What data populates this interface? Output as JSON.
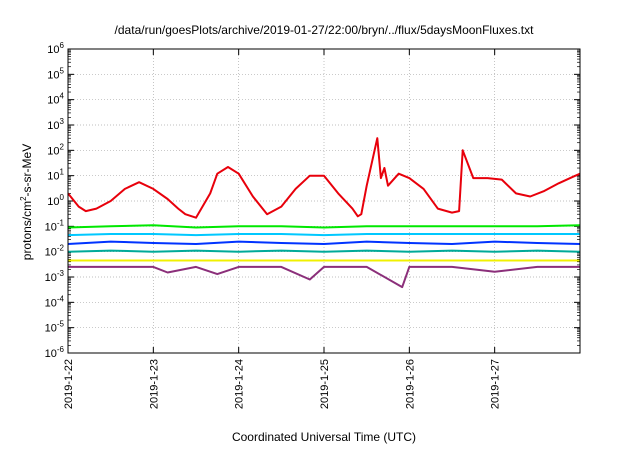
{
  "chart_data": {
    "type": "line",
    "title": "/data/run/goesPlots/archive/2019-01-27/22:00/bryn/../flux/5daysMoonFluxes.txt",
    "xlabel": "Coordinated Universal Time (UTC)",
    "ylabel": {
      "base": "protons/cm",
      "sup": "2",
      "rest": "-s-sr-MeV"
    },
    "y_scale": "log",
    "ylim": [
      1e-06,
      1000000.0
    ],
    "y_ticks": [
      {
        "value": 1e-06,
        "base": "10",
        "exp": "-6"
      },
      {
        "value": 1e-05,
        "base": "10",
        "exp": "-5"
      },
      {
        "value": 0.0001,
        "base": "10",
        "exp": "-4"
      },
      {
        "value": 0.001,
        "base": "10",
        "exp": "-3"
      },
      {
        "value": 0.01,
        "base": "10",
        "exp": "-2"
      },
      {
        "value": 0.1,
        "base": "10",
        "exp": "-1"
      },
      {
        "value": 1,
        "base": "10",
        "exp": "0"
      },
      {
        "value": 10.0,
        "base": "10",
        "exp": "1"
      },
      {
        "value": 100.0,
        "base": "10",
        "exp": "2"
      },
      {
        "value": 1000.0,
        "base": "10",
        "exp": "3"
      },
      {
        "value": 10000.0,
        "base": "10",
        "exp": "4"
      },
      {
        "value": 100000.0,
        "base": "10",
        "exp": "5"
      },
      {
        "value": 1000000.0,
        "base": "10",
        "exp": "6"
      }
    ],
    "xlim": [
      "2019-01-22",
      "2019-01-28"
    ],
    "x_ticks": [
      "2019-1-22",
      "2019-1-23",
      "2019-1-24",
      "2019-1-25",
      "2019-1-26",
      "2019-1-27"
    ],
    "x_tick_dates": [
      "2019-01-22",
      "2019-01-23",
      "2019-01-24",
      "2019-01-25",
      "2019-01-26",
      "2019-01-27"
    ],
    "grid": true,
    "legend": "none",
    "series": [
      {
        "color": "#e8000b",
        "x": [
          "2019-01-22 00:00",
          "2019-01-22 03:00",
          "2019-01-22 05:00",
          "2019-01-22 08:00",
          "2019-01-22 12:00",
          "2019-01-22 16:00",
          "2019-01-22 20:00",
          "2019-01-23 00:00",
          "2019-01-23 04:00",
          "2019-01-23 07:00",
          "2019-01-23 09:00",
          "2019-01-23 12:00",
          "2019-01-23 16:00",
          "2019-01-23 18:00",
          "2019-01-23 21:00",
          "2019-01-24 00:00",
          "2019-01-24 04:00",
          "2019-01-24 08:00",
          "2019-01-24 12:00",
          "2019-01-24 16:00",
          "2019-01-24 20:00",
          "2019-01-25 00:00",
          "2019-01-25 04:00",
          "2019-01-25 08:00",
          "2019-01-25 09:30",
          "2019-01-25 10:30",
          "2019-01-25 12:00",
          "2019-01-25 15:00",
          "2019-01-25 16:00",
          "2019-01-25 17:00",
          "2019-01-25 18:00",
          "2019-01-25 21:00",
          "2019-01-26 00:00",
          "2019-01-26 04:00",
          "2019-01-26 08:00",
          "2019-01-26 12:00",
          "2019-01-26 14:00",
          "2019-01-26 15:00",
          "2019-01-26 18:00",
          "2019-01-26 22:00",
          "2019-01-27 02:00",
          "2019-01-27 06:00",
          "2019-01-27 10:00",
          "2019-01-27 14:00",
          "2019-01-27 18:00",
          "2019-01-27 22:00",
          "2019-01-28 00:00"
        ],
        "values": [
          2.0,
          0.6,
          0.4,
          0.5,
          1.0,
          3.0,
          5.5,
          3.0,
          1.2,
          0.5,
          0.3,
          0.22,
          2.0,
          12,
          22,
          12,
          1.5,
          0.3,
          0.6,
          3.0,
          10,
          10,
          2.0,
          0.5,
          0.25,
          0.3,
          4.0,
          300,
          8.0,
          20,
          4.0,
          12,
          8.0,
          3.0,
          0.5,
          0.35,
          0.4,
          100,
          8.0,
          8.0,
          7.0,
          2.0,
          1.5,
          2.5,
          5.0,
          9.0,
          12
        ]
      },
      {
        "color": "#00e800",
        "x": [
          "2019-01-22 00:00",
          "2019-01-22 12:00",
          "2019-01-23 00:00",
          "2019-01-23 12:00",
          "2019-01-24 00:00",
          "2019-01-24 12:00",
          "2019-01-25 00:00",
          "2019-01-25 12:00",
          "2019-01-26 00:00",
          "2019-01-26 12:00",
          "2019-01-27 00:00",
          "2019-01-27 12:00",
          "2019-01-28 00:00"
        ],
        "values": [
          0.09,
          0.1,
          0.11,
          0.09,
          0.1,
          0.1,
          0.09,
          0.1,
          0.1,
          0.1,
          0.1,
          0.1,
          0.11
        ]
      },
      {
        "color": "#00c8ff",
        "x": [
          "2019-01-22 00:00",
          "2019-01-22 12:00",
          "2019-01-23 00:00",
          "2019-01-23 12:00",
          "2019-01-24 00:00",
          "2019-01-24 12:00",
          "2019-01-25 00:00",
          "2019-01-25 12:00",
          "2019-01-26 00:00",
          "2019-01-26 12:00",
          "2019-01-27 00:00",
          "2019-01-27 12:00",
          "2019-01-28 00:00"
        ],
        "values": [
          0.045,
          0.05,
          0.05,
          0.045,
          0.05,
          0.05,
          0.045,
          0.05,
          0.05,
          0.05,
          0.05,
          0.05,
          0.05
        ]
      },
      {
        "color": "#0033ff",
        "x": [
          "2019-01-22 00:00",
          "2019-01-22 12:00",
          "2019-01-23 00:00",
          "2019-01-23 12:00",
          "2019-01-24 00:00",
          "2019-01-24 12:00",
          "2019-01-25 00:00",
          "2019-01-25 12:00",
          "2019-01-26 00:00",
          "2019-01-26 12:00",
          "2019-01-27 00:00",
          "2019-01-27 12:00",
          "2019-01-28 00:00"
        ],
        "values": [
          0.02,
          0.025,
          0.022,
          0.02,
          0.025,
          0.022,
          0.02,
          0.025,
          0.022,
          0.02,
          0.025,
          0.022,
          0.02
        ]
      },
      {
        "color": "#00aa99",
        "x": [
          "2019-01-22 00:00",
          "2019-01-22 12:00",
          "2019-01-23 00:00",
          "2019-01-23 12:00",
          "2019-01-24 00:00",
          "2019-01-24 12:00",
          "2019-01-25 00:00",
          "2019-01-25 12:00",
          "2019-01-26 00:00",
          "2019-01-26 12:00",
          "2019-01-27 00:00",
          "2019-01-27 12:00",
          "2019-01-28 00:00"
        ],
        "values": [
          0.01,
          0.011,
          0.01,
          0.011,
          0.01,
          0.011,
          0.01,
          0.011,
          0.01,
          0.011,
          0.01,
          0.011,
          0.01
        ]
      },
      {
        "color": "#f0f000",
        "x": [
          "2019-01-22 00:00",
          "2019-01-23 00:00",
          "2019-01-24 00:00",
          "2019-01-25 00:00",
          "2019-01-26 00:00",
          "2019-01-27 00:00",
          "2019-01-28 00:00"
        ],
        "values": [
          0.0045,
          0.0045,
          0.0045,
          0.0045,
          0.0045,
          0.0045,
          0.0045
        ]
      },
      {
        "color": "#8b2f7a",
        "x": [
          "2019-01-22 00:00",
          "2019-01-22 12:00",
          "2019-01-23 00:00",
          "2019-01-23 04:00",
          "2019-01-23 12:00",
          "2019-01-23 18:00",
          "2019-01-24 00:00",
          "2019-01-24 12:00",
          "2019-01-24 20:00",
          "2019-01-25 00:00",
          "2019-01-25 12:00",
          "2019-01-25 22:00",
          "2019-01-26 00:00",
          "2019-01-26 12:00",
          "2019-01-27 00:00",
          "2019-01-27 12:00",
          "2019-01-28 00:00"
        ],
        "values": [
          0.0025,
          0.0025,
          0.0025,
          0.0015,
          0.0025,
          0.0013,
          0.0025,
          0.0025,
          0.0008,
          0.0025,
          0.0025,
          0.0004,
          0.0025,
          0.0025,
          0.0016,
          0.0025,
          0.0025
        ]
      }
    ]
  }
}
